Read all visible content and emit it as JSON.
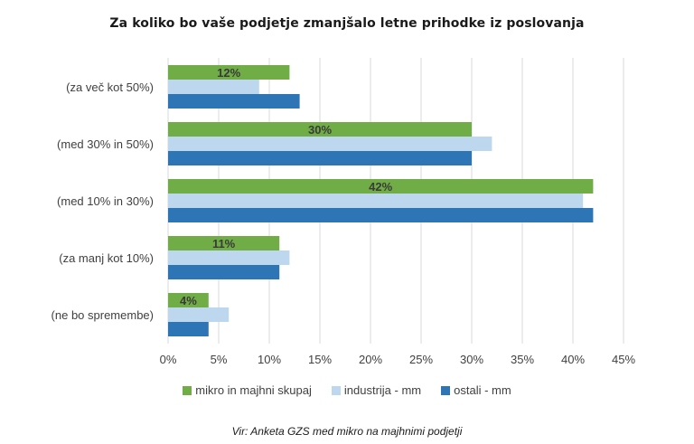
{
  "chart_data": {
    "type": "bar",
    "orientation": "horizontal",
    "title": "Za koliko  bo vaše  podjetje  zmanjšalo  letne prihodke  iz poslovanja",
    "categories": [
      "(za več kot 50%)",
      "(med 30% in 50%)",
      "(med 10% in 30%)",
      "(za manj kot 10%)",
      "(ne bo spremembe)"
    ],
    "series": [
      {
        "name": "mikro in majhni skupaj",
        "values": [
          12,
          30,
          42,
          11,
          4
        ],
        "color": "#70ad47",
        "data_labels": [
          "12%",
          "30%",
          "42%",
          "11%",
          "4%"
        ]
      },
      {
        "name": "industrija - mm",
        "values": [
          9,
          32,
          41,
          12,
          6
        ],
        "color": "#bdd7ee"
      },
      {
        "name": "ostali - mm",
        "values": [
          13,
          30,
          42,
          11,
          4
        ],
        "color": "#2e75b6"
      }
    ],
    "xlim": [
      0,
      45
    ],
    "x_ticks": [
      "0%",
      "5%",
      "10%",
      "15%",
      "20%",
      "25%",
      "30%",
      "35%",
      "40%",
      "45%"
    ],
    "grid": "vertical",
    "legend_position": "bottom",
    "source_note": "Vir: Anketa GZS med mikro na majhnimi podjetji"
  }
}
